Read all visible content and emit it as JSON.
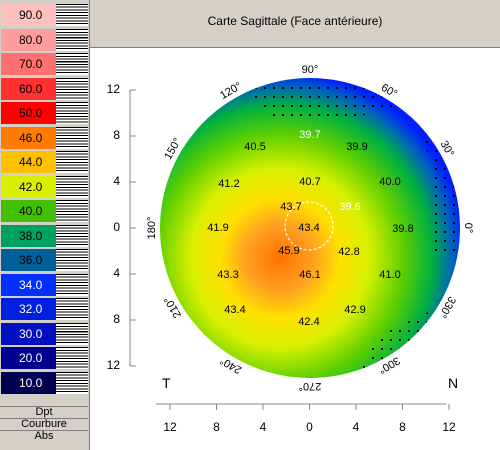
{
  "scale": {
    "items": [
      {
        "label": "90.0",
        "color": "#ffc0c0"
      },
      {
        "label": "80.0",
        "color": "#ff9c9c"
      },
      {
        "label": "70.0",
        "color": "#ff7070"
      },
      {
        "label": "60.0",
        "color": "#ff3030"
      },
      {
        "label": "50.0",
        "color": "#ff0000"
      },
      {
        "label": "46.0",
        "color": "#ff7a00"
      },
      {
        "label": "44.0",
        "color": "#ffc000"
      },
      {
        "label": "42.0",
        "color": "#d8f000"
      },
      {
        "label": "40.0",
        "color": "#40c000"
      },
      {
        "label": "38.0",
        "color": "#00a060"
      },
      {
        "label": "36.0",
        "color": "#00609a"
      },
      {
        "label": "34.0",
        "color": "#0030ff"
      },
      {
        "label": "32.0",
        "color": "#0020e0"
      },
      {
        "label": "30.0",
        "color": "#0010c0"
      },
      {
        "label": "20.0",
        "color": "#000090"
      },
      {
        "label": "10.0",
        "color": "#000050"
      }
    ],
    "units": [
      "Dpt",
      "Courbure",
      "Abs"
    ]
  },
  "map": {
    "title": "Carte Sagittale (Face antérieure)",
    "degree_labels": [
      "90°",
      "60°",
      "30°",
      "0°",
      "330°",
      "300°",
      "270°",
      "240°",
      "210°",
      "180°",
      "150°",
      "120°"
    ],
    "y_ticks": [
      "12",
      "8",
      "4",
      "0",
      "4",
      "8",
      "12"
    ],
    "x_ticks": [
      "12",
      "8",
      "4",
      "0",
      "4",
      "8",
      "12"
    ],
    "temporal_label": "T",
    "nasal_label": "N",
    "values": [
      "39.7",
      "40.5",
      "39.9",
      "41.2",
      "40.7",
      "40.0",
      "43.7",
      "39.6",
      "41.9",
      "43.4",
      "39.8",
      "45.9",
      "42.8",
      "43.3",
      "46.1",
      "41.0",
      "43.4",
      "42.4",
      "42.9"
    ]
  }
}
